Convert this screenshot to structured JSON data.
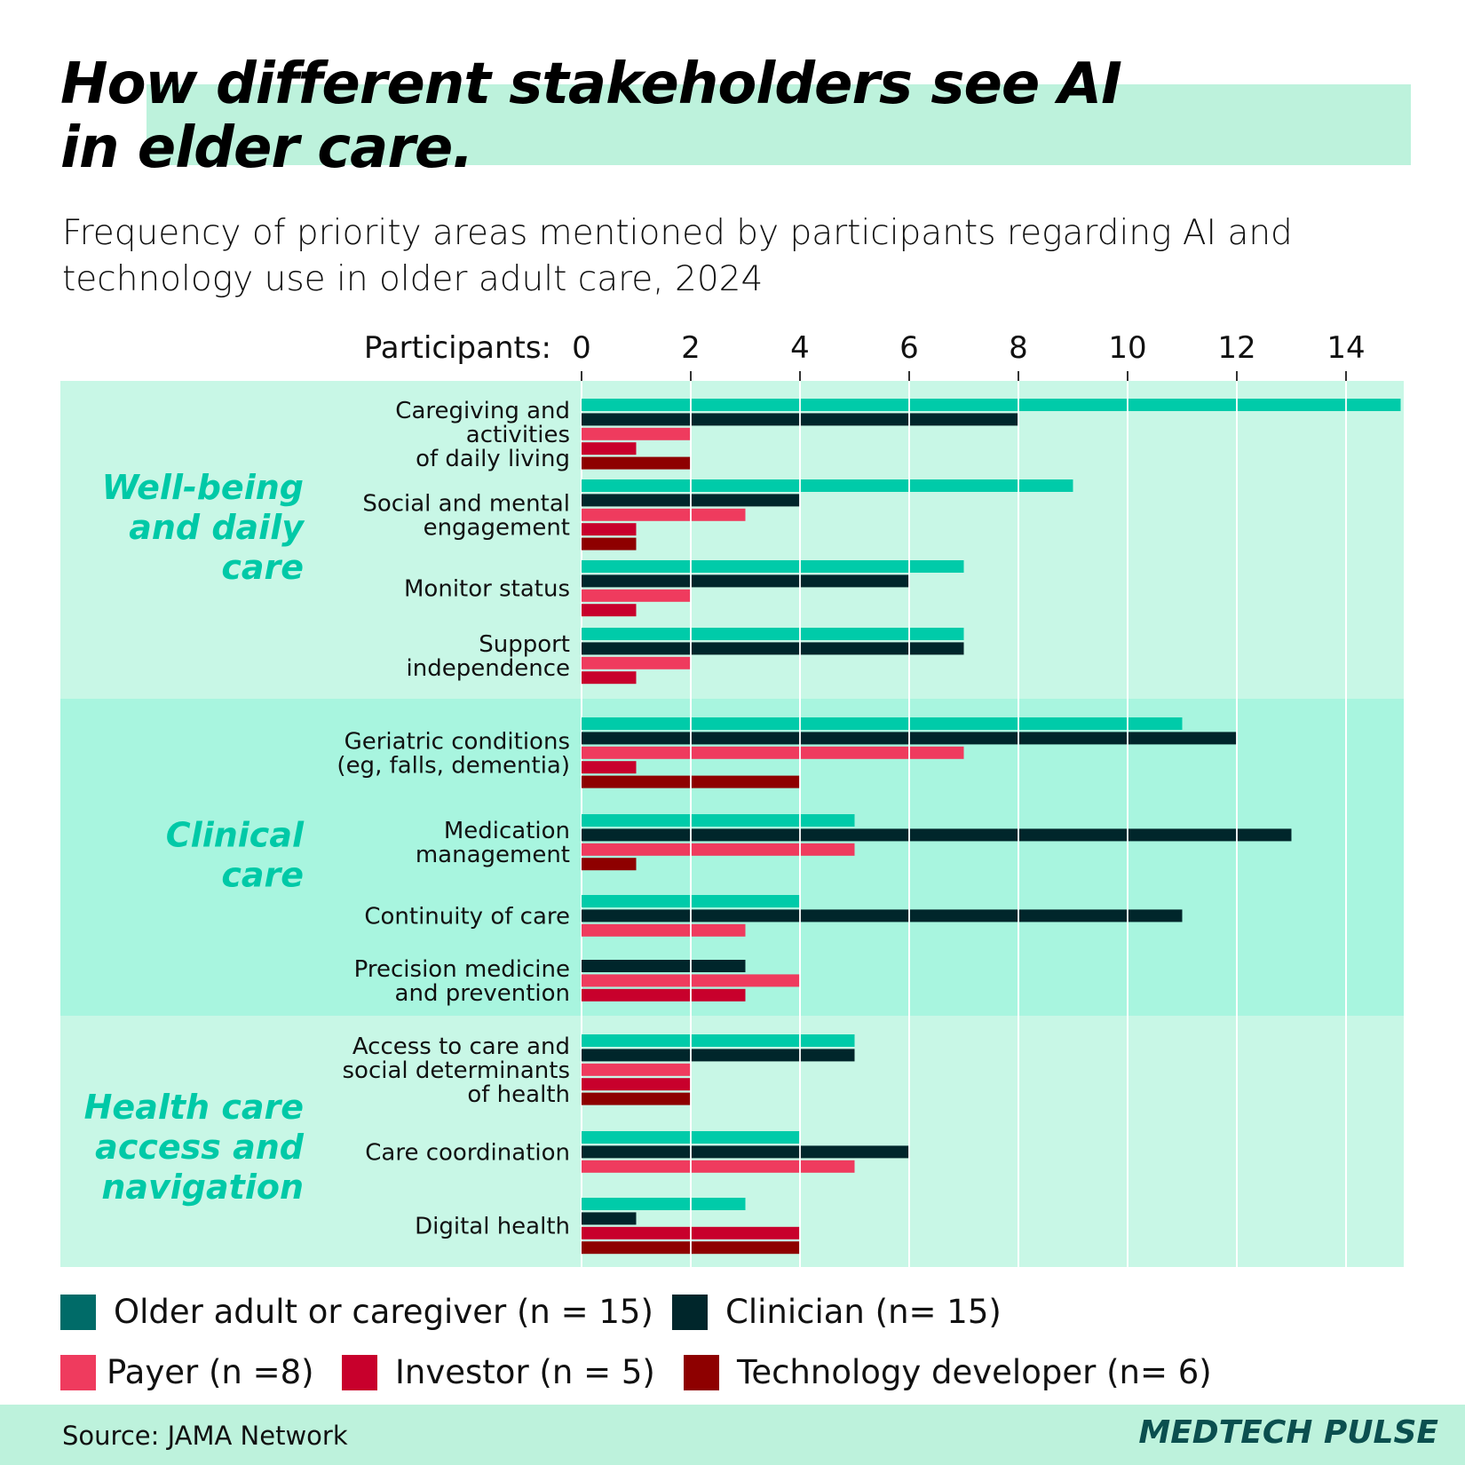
{
  "title_lines": [
    "How different stakeholders see AI",
    "in elder care."
  ],
  "subtitle_lines": [
    "Frequency of priority areas mentioned by participants regarding AI and",
    "technology use in older adult care, 2024"
  ],
  "source": "Source: JAMA Network",
  "brand": "MEDTECH PULSE",
  "colors": {
    "title_highlight": "#bdf2dc",
    "band_light": "#c8f7e6",
    "band_dark": "#a8f5df",
    "category_text": "#00c9a7"
  },
  "chart_data": {
    "type": "bar",
    "orientation": "horizontal",
    "xlabel": "Participants:",
    "xlim": [
      0,
      15
    ],
    "xticks": [
      0,
      2,
      4,
      6,
      8,
      10,
      12,
      14
    ],
    "grid": true,
    "legend_position": "bottom",
    "series": [
      {
        "key": "older",
        "name": "Older adult or caregiver (n = 15)",
        "color": "#00cba9",
        "swatch": "#006b68"
      },
      {
        "key": "clinician",
        "name": "Clinician (n= 15)",
        "color": "#00262b",
        "swatch": "#00262b"
      },
      {
        "key": "payer",
        "name": "Payer (n =8)",
        "color": "#ef3b5e",
        "swatch": "#ef3b5e"
      },
      {
        "key": "investor",
        "name": "Investor (n = 5)",
        "color": "#c8002c",
        "swatch": "#c8002c"
      },
      {
        "key": "tech",
        "name": "Technology developer (n= 6)",
        "color": "#8e0000",
        "swatch": "#8e0000"
      }
    ],
    "groups": [
      {
        "label_lines": [
          "Well-being",
          "and daily",
          "care"
        ],
        "items": [
          {
            "label_lines": [
              "Caregiving and",
              "activities",
              "of daily living"
            ],
            "values": {
              "older": 15,
              "clinician": 8,
              "payer": 2,
              "investor": 1,
              "tech": 2
            }
          },
          {
            "label_lines": [
              "Social and mental",
              "engagement"
            ],
            "values": {
              "older": 9,
              "clinician": 4,
              "payer": 3,
              "investor": 1,
              "tech": 1
            }
          },
          {
            "label_lines": [
              "Monitor status"
            ],
            "values": {
              "older": 7,
              "clinician": 6,
              "payer": 2,
              "investor": 1
            }
          },
          {
            "label_lines": [
              "Support",
              "independence"
            ],
            "values": {
              "older": 7,
              "clinician": 7,
              "payer": 2,
              "investor": 1
            }
          }
        ]
      },
      {
        "label_lines": [
          "Clinical",
          "care"
        ],
        "items": [
          {
            "label_lines": [
              "Geriatric conditions",
              "(eg, falls, dementia)"
            ],
            "values": {
              "older": 11,
              "clinician": 12,
              "payer": 7,
              "investor": 1,
              "tech": 4
            }
          },
          {
            "label_lines": [
              "Medication",
              "management"
            ],
            "values": {
              "older": 5,
              "clinician": 13,
              "payer": 5,
              "tech": 1
            }
          },
          {
            "label_lines": [
              "Continuity of care"
            ],
            "values": {
              "older": 4,
              "clinician": 11,
              "payer": 3
            }
          },
          {
            "label_lines": [
              "Precision medicine",
              "and prevention"
            ],
            "values": {
              "clinician": 3,
              "payer": 4,
              "investor": 3
            }
          }
        ]
      },
      {
        "label_lines": [
          "Health care",
          "access and",
          "navigation"
        ],
        "items": [
          {
            "label_lines": [
              "Access to care and",
              "social determinants",
              "of health"
            ],
            "values": {
              "older": 5,
              "clinician": 5,
              "payer": 2,
              "investor": 2,
              "tech": 2
            }
          },
          {
            "label_lines": [
              "Care coordination"
            ],
            "values": {
              "older": 4,
              "clinician": 6,
              "payer": 5
            }
          },
          {
            "label_lines": [
              "Digital health"
            ],
            "values": {
              "older": 3,
              "clinician": 1,
              "investor": 4,
              "tech": 4
            }
          }
        ]
      }
    ]
  }
}
